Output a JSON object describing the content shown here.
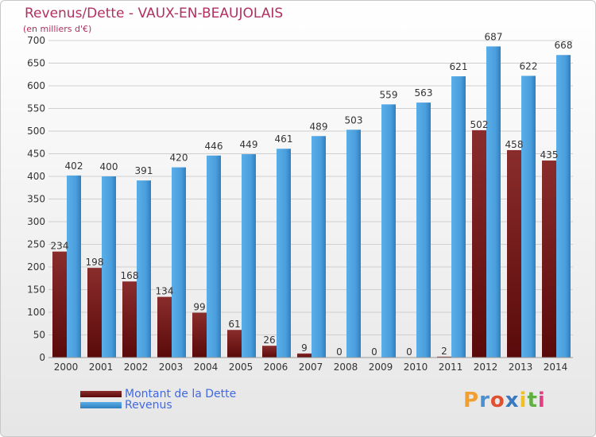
{
  "header": {
    "title": "Revenus/Dette - VAUX-EN-BEAUJOLAIS",
    "subtitle": "(en milliers d'€)"
  },
  "legend": {
    "debt_label": "Montant de la Dette",
    "revenue_label": "Revenus"
  },
  "logo": {
    "letters": [
      "P",
      "r",
      "o",
      "x",
      "i",
      "t",
      "i"
    ],
    "colors": [
      "#f0a030",
      "#4a90d0",
      "#e05030",
      "#3a78c0",
      "#f0c020",
      "#60b040",
      "#e04080"
    ]
  },
  "colors": {
    "debt_top": "#8a2c2c",
    "debt_bottom": "#5a0a0a",
    "revenue_top": "#5aaee8",
    "revenue_bottom": "#2f7fc0",
    "grid": "#cfcfcf",
    "axis_text": "#333333"
  },
  "chart_data": {
    "type": "bar",
    "categories": [
      "2000",
      "2001",
      "2002",
      "2003",
      "2004",
      "2005",
      "2006",
      "2007",
      "2008",
      "2009",
      "2010",
      "2011",
      "2012",
      "2013",
      "2014"
    ],
    "series": [
      {
        "name": "Montant de la Dette",
        "values": [
          234,
          198,
          168,
          134,
          99,
          61,
          26,
          9,
          0,
          0,
          0,
          2,
          502,
          458,
          435
        ]
      },
      {
        "name": "Revenus",
        "values": [
          402,
          400,
          391,
          420,
          446,
          449,
          461,
          489,
          503,
          559,
          563,
          621,
          687,
          622,
          668
        ]
      }
    ],
    "ylim": [
      0,
      700
    ],
    "yticks": [
      0,
      50,
      100,
      150,
      200,
      250,
      300,
      350,
      400,
      450,
      500,
      550,
      600,
      650,
      700
    ],
    "grid": true,
    "legend_position": "bottom-left"
  }
}
